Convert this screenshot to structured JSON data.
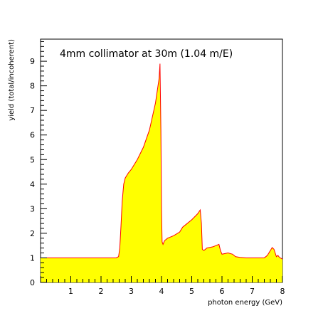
{
  "chart_data": {
    "type": "area",
    "title": "4mm collimator at 30m (1.04 m/E)",
    "xlabel": "photon energy (GeV)",
    "ylabel": "yield (total/incoherent)",
    "xlim": [
      0,
      8
    ],
    "ylim": [
      0,
      9.9
    ],
    "xticks": [
      "1",
      "2",
      "3",
      "4",
      "5",
      "6",
      "7",
      "8"
    ],
    "yticks": [
      "0",
      "1",
      "2",
      "3",
      "4",
      "5",
      "6",
      "7",
      "8",
      "9"
    ],
    "grid": false,
    "fill_color": "#ffff00",
    "line_color": "#ff0000",
    "series": [
      {
        "x": [
          0,
          0.5,
          1.0,
          1.5,
          2.0,
          2.5,
          2.58,
          2.62,
          2.66,
          2.7,
          2.75,
          2.8,
          2.9,
          3.0,
          3.2,
          3.4,
          3.6,
          3.8,
          3.92,
          3.95,
          3.98,
          4.0,
          4.02,
          4.05,
          4.1,
          4.2,
          4.4,
          4.6,
          4.7,
          4.8,
          5.0,
          5.2,
          5.28,
          5.32,
          5.35,
          5.4,
          5.5,
          5.7,
          5.9,
          5.95,
          6.0,
          6.2,
          6.35,
          6.45,
          6.6,
          6.8,
          7.0,
          7.2,
          7.4,
          7.5,
          7.6,
          7.66,
          7.72,
          7.8,
          7.85,
          7.9,
          8.0
        ],
        "y": [
          1.0,
          1.0,
          1.0,
          1.0,
          1.0,
          1.0,
          1.05,
          1.4,
          2.3,
          3.3,
          4.0,
          4.25,
          4.45,
          4.6,
          5.0,
          5.5,
          6.2,
          7.3,
          8.3,
          8.9,
          6.2,
          3.0,
          1.65,
          1.55,
          1.7,
          1.8,
          1.9,
          2.05,
          2.25,
          2.35,
          2.55,
          2.8,
          2.95,
          2.4,
          1.35,
          1.3,
          1.4,
          1.45,
          1.55,
          1.3,
          1.15,
          1.2,
          1.15,
          1.05,
          1.02,
          1.0,
          1.0,
          1.0,
          1.0,
          1.1,
          1.3,
          1.42,
          1.35,
          1.05,
          1.1,
          1.02,
          0.95
        ]
      }
    ]
  }
}
